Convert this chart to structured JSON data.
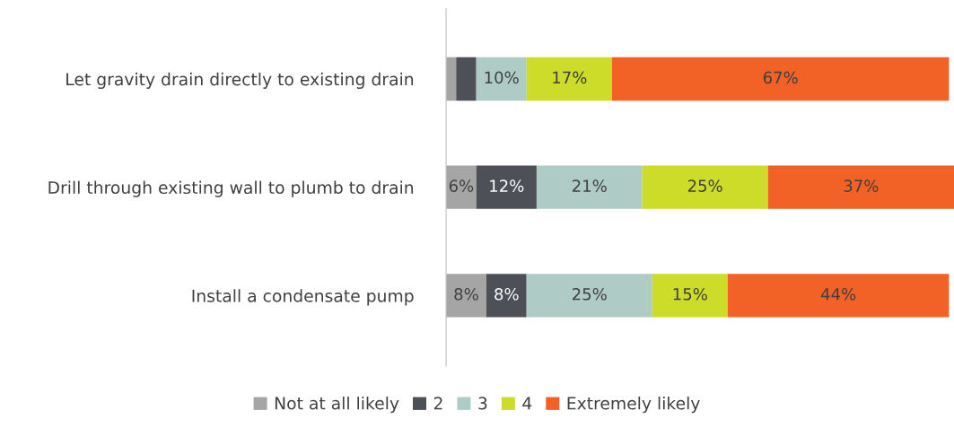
{
  "chart_data": {
    "type": "bar",
    "orientation": "horizontal",
    "stacked": true,
    "categories": [
      "Let gravity drain directly to existing drain",
      "Drill through existing wall to plumb to drain",
      "Install a condensate pump"
    ],
    "series": [
      {
        "name": "Not at all likely",
        "color": "#a5a5a5",
        "values": [
          2,
          6,
          8
        ],
        "value_labels": [
          null,
          "6%",
          "8%"
        ]
      },
      {
        "name": "2",
        "color": "#4d5157",
        "values": [
          4,
          12,
          8
        ],
        "value_labels": [
          null,
          "12%",
          "8%"
        ]
      },
      {
        "name": "3",
        "color": "#afcbc6",
        "values": [
          10,
          21,
          25
        ],
        "value_labels": [
          "10%",
          "21%",
          "25%"
        ]
      },
      {
        "name": "4",
        "color": "#cddc29",
        "values": [
          17,
          25,
          15
        ],
        "value_labels": [
          "17%",
          "25%",
          "15%"
        ]
      },
      {
        "name": "Extremely likely",
        "color": "#f26125",
        "values": [
          67,
          37,
          44
        ],
        "value_labels": [
          "67%",
          "37%",
          "44%"
        ]
      }
    ],
    "xlim": [
      0,
      101
    ],
    "tick_labels": "y",
    "legend": "bottom",
    "grid": false
  }
}
